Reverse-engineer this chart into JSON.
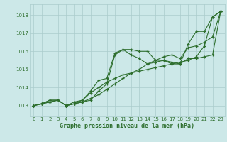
{
  "title": "Graphe pression niveau de la mer (hPa)",
  "bg_color": "#cce8e8",
  "grid_color": "#aacccc",
  "line_color": "#2d6e2d",
  "xlim": [
    -0.5,
    23.5
  ],
  "ylim": [
    1012.4,
    1018.6
  ],
  "yticks": [
    1013,
    1014,
    1015,
    1016,
    1017,
    1018
  ],
  "xticks": [
    0,
    1,
    2,
    3,
    4,
    5,
    6,
    7,
    8,
    9,
    10,
    11,
    12,
    13,
    14,
    15,
    16,
    17,
    18,
    19,
    20,
    21,
    22,
    23
  ],
  "series": [
    [
      1013.0,
      1013.1,
      1013.3,
      1013.3,
      1013.0,
      1013.1,
      1013.2,
      1013.4,
      1013.6,
      1013.9,
      1014.2,
      1014.5,
      1014.8,
      1015.0,
      1015.3,
      1015.5,
      1015.7,
      1015.8,
      1015.6,
      1016.2,
      1016.3,
      1016.5,
      1016.8,
      1018.2
    ],
    [
      1013.0,
      1013.1,
      1013.2,
      1013.3,
      1013.0,
      1013.1,
      1013.2,
      1013.3,
      1013.8,
      1014.2,
      1015.8,
      1016.1,
      1016.1,
      1016.0,
      1016.0,
      1015.5,
      1015.5,
      1015.3,
      1015.3,
      1016.4,
      1017.1,
      1017.1,
      1017.9,
      1018.2
    ],
    [
      1013.0,
      1013.1,
      1013.2,
      1013.3,
      1013.0,
      1013.1,
      1013.3,
      1013.7,
      1014.0,
      1014.3,
      1014.5,
      1014.7,
      1014.8,
      1014.9,
      1015.0,
      1015.1,
      1015.2,
      1015.3,
      1015.4,
      1015.5,
      1015.7,
      1016.3,
      1017.9,
      1018.2
    ],
    [
      1013.0,
      1013.1,
      1013.3,
      1013.3,
      1013.0,
      1013.2,
      1013.3,
      1013.8,
      1014.4,
      1014.5,
      1015.9,
      1016.1,
      1015.8,
      1015.6,
      1015.3,
      1015.4,
      1015.5,
      1015.4,
      1015.3,
      1015.6,
      1015.6,
      1015.7,
      1015.8,
      1018.2
    ]
  ]
}
